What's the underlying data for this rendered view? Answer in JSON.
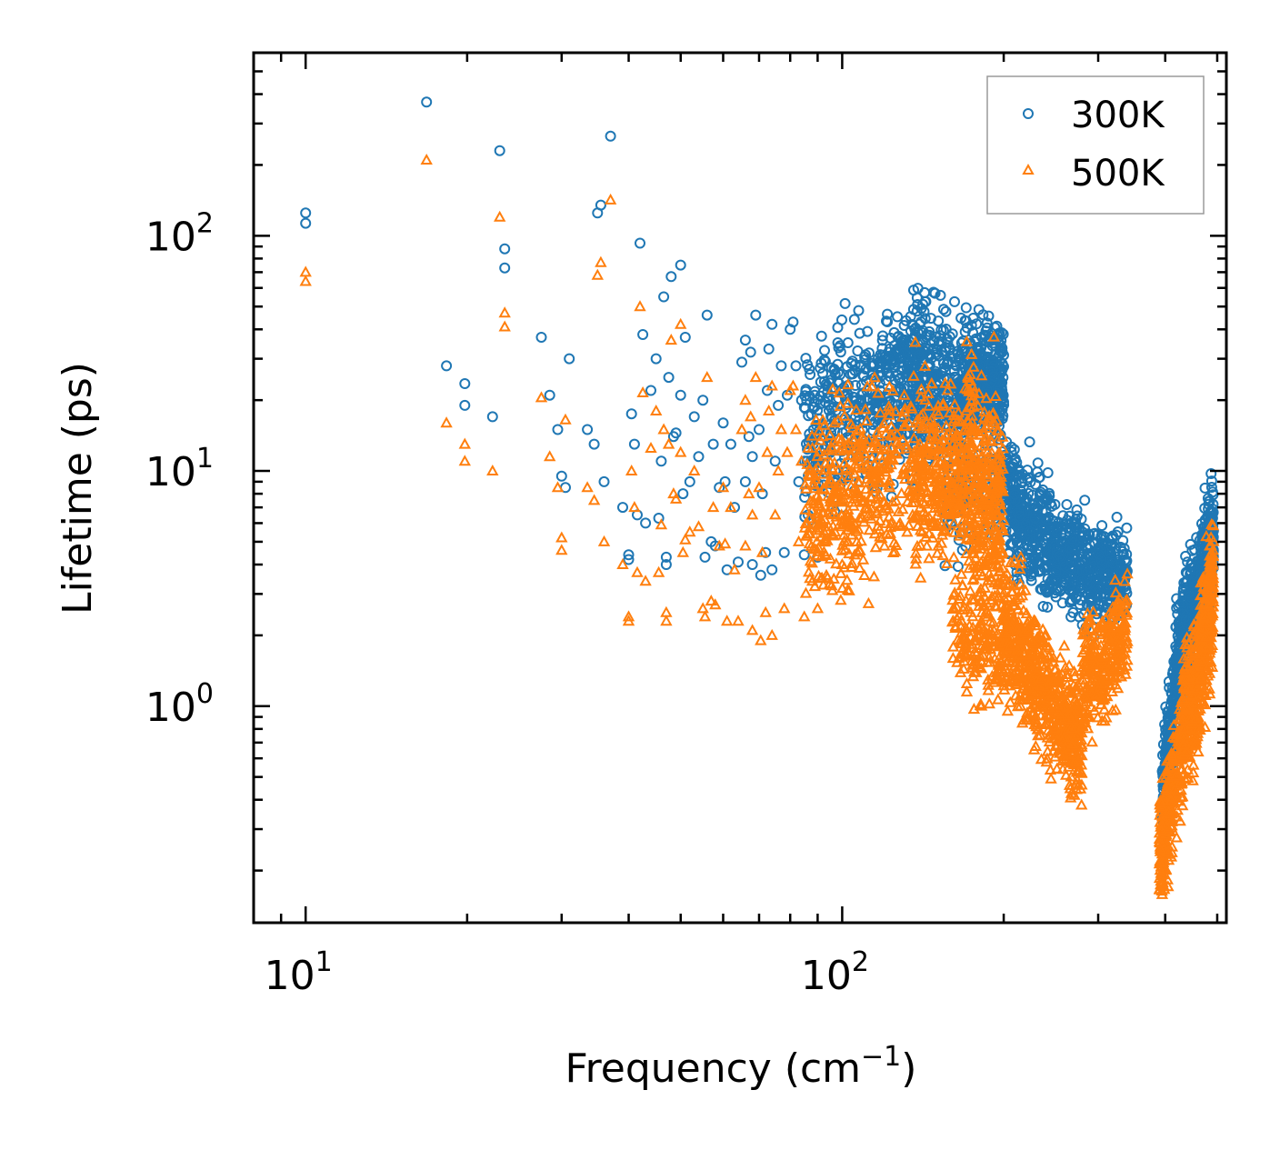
{
  "chart_data": {
    "type": "scatter",
    "title": "",
    "xlabel": "Frequency (cm",
    "xlabel_sup": "−1",
    "xlabel_suffix": ")",
    "ylabel": "Lifetime (ps)",
    "xscale": "log",
    "yscale": "log",
    "xlim": [
      8,
      520
    ],
    "ylim": [
      0.12,
      600
    ],
    "legend_position": "top-right",
    "x_ticks": [
      {
        "value": 10,
        "base": "10",
        "exp": "1"
      },
      {
        "value": 100,
        "base": "10",
        "exp": "2"
      }
    ],
    "y_ticks": [
      {
        "value": 1,
        "base": "10",
        "exp": "0"
      },
      {
        "value": 10,
        "base": "10",
        "exp": "1"
      },
      {
        "value": 100,
        "base": "10",
        "exp": "2"
      }
    ],
    "series": [
      {
        "name": "300K",
        "color": "#1f77b4",
        "marker": "circle",
        "points": [
          [
            10,
            125
          ],
          [
            10,
            113
          ],
          [
            16.8,
            370
          ],
          [
            18.3,
            28
          ],
          [
            19.8,
            23.5
          ],
          [
            19.8,
            19
          ],
          [
            22.3,
            17
          ],
          [
            23,
            230
          ],
          [
            23.5,
            88
          ],
          [
            23.5,
            73
          ],
          [
            27.5,
            37
          ],
          [
            28.5,
            21
          ],
          [
            29.5,
            15
          ],
          [
            30,
            9.5
          ],
          [
            30.5,
            8.5
          ],
          [
            31,
            30
          ],
          [
            33.5,
            15
          ],
          [
            34.5,
            13
          ],
          [
            35,
            125
          ],
          [
            35.5,
            135
          ],
          [
            36,
            9
          ],
          [
            37,
            265
          ],
          [
            39,
            7
          ],
          [
            40,
            4.4
          ],
          [
            40,
            4.2
          ],
          [
            40.5,
            17.5
          ],
          [
            41,
            13
          ],
          [
            41.5,
            6.5
          ],
          [
            42,
            93
          ],
          [
            42.5,
            38
          ],
          [
            43,
            6
          ],
          [
            44,
            22
          ],
          [
            45,
            30
          ],
          [
            45.5,
            6.3
          ],
          [
            46,
            11
          ],
          [
            46.5,
            55
          ],
          [
            47,
            4.3
          ],
          [
            47,
            4.0
          ],
          [
            47.5,
            25
          ],
          [
            48,
            67
          ],
          [
            48.5,
            14
          ],
          [
            49,
            14.5
          ],
          [
            50,
            75
          ],
          [
            50,
            21
          ],
          [
            50.5,
            8
          ],
          [
            51,
            37
          ],
          [
            52,
            9
          ],
          [
            53,
            17
          ],
          [
            54,
            11.5
          ],
          [
            55,
            20
          ],
          [
            55.5,
            4.3
          ],
          [
            56,
            46
          ],
          [
            57,
            5
          ],
          [
            57.5,
            13
          ],
          [
            58,
            4.8
          ],
          [
            59,
            8.5
          ],
          [
            60,
            16
          ],
          [
            60.5,
            9
          ],
          [
            61,
            3.8
          ],
          [
            62,
            13
          ],
          [
            63,
            7
          ],
          [
            64,
            4.1
          ],
          [
            65,
            29
          ],
          [
            66,
            36
          ],
          [
            66,
            9
          ],
          [
            67,
            14
          ],
          [
            67.5,
            32
          ],
          [
            68,
            4
          ],
          [
            68,
            11.5
          ],
          [
            69,
            46
          ],
          [
            70,
            15
          ],
          [
            70.5,
            3.6
          ],
          [
            71,
            8
          ],
          [
            72,
            4.5
          ],
          [
            72.5,
            22
          ],
          [
            73,
            33
          ],
          [
            74,
            42
          ],
          [
            74,
            3.8
          ],
          [
            75,
            11
          ],
          [
            76,
            19
          ],
          [
            77,
            28
          ],
          [
            78,
            4.5
          ],
          [
            79,
            21
          ],
          [
            80,
            40
          ],
          [
            81,
            43
          ],
          [
            82,
            28
          ],
          [
            83,
            9
          ],
          [
            84,
            20
          ],
          [
            85,
            4.4
          ],
          [
            86,
            11
          ],
          [
            88,
            6
          ],
          [
            90,
            4.3
          ],
          [
            92,
            26
          ],
          [
            95,
            13
          ],
          [
            97,
            10
          ],
          [
            100,
            7
          ]
        ],
        "clusters": [
          {
            "xmin": 85,
            "xmax": 140,
            "ymid_start": 15,
            "ymid_end": 24,
            "spread": 0.5,
            "count": 420
          },
          {
            "xmin": 120,
            "xmax": 135,
            "ymid_start": 28,
            "ymid_end": 30,
            "spread": 0.25,
            "count": 60
          },
          {
            "xmin": 135,
            "xmax": 170,
            "ymid_start": 24,
            "ymid_end": 22,
            "spread": 0.45,
            "count": 320
          },
          {
            "xmin": 170,
            "xmax": 200,
            "ymid_start": 26,
            "ymid_end": 25,
            "spread": 0.35,
            "count": 320
          },
          {
            "xmin": 155,
            "xmax": 200,
            "ymid_start": 7,
            "ymid_end": 9,
            "spread": 0.3,
            "count": 120
          },
          {
            "xmin": 200,
            "xmax": 250,
            "ymid_start": 8,
            "ymid_end": 4.5,
            "spread": 0.35,
            "count": 360
          },
          {
            "xmin": 250,
            "xmax": 300,
            "ymid_start": 4.5,
            "ymid_end": 3.5,
            "spread": 0.3,
            "count": 280
          },
          {
            "xmin": 300,
            "xmax": 340,
            "ymid_start": 3.8,
            "ymid_end": 3.6,
            "spread": 0.25,
            "count": 200
          },
          {
            "xmin": 395,
            "xmax": 430,
            "ymid_start": 0.4,
            "ymid_end": 2.0,
            "spread": 0.35,
            "count": 260
          },
          {
            "xmin": 430,
            "xmax": 465,
            "ymid_start": 2.0,
            "ymid_end": 3.0,
            "spread": 0.35,
            "count": 240
          },
          {
            "xmin": 465,
            "xmax": 492,
            "ymid_start": 3.5,
            "ymid_end": 5.5,
            "spread": 0.3,
            "count": 240
          }
        ]
      },
      {
        "name": "500K",
        "color": "#ff7f0e",
        "marker": "triangle",
        "points": [
          [
            10,
            70
          ],
          [
            10,
            64
          ],
          [
            16.8,
            210
          ],
          [
            18.3,
            16
          ],
          [
            19.8,
            13
          ],
          [
            19.8,
            11
          ],
          [
            22.3,
            10
          ],
          [
            23,
            120
          ],
          [
            23.5,
            47
          ],
          [
            23.5,
            41
          ],
          [
            27.5,
            20.5
          ],
          [
            28.5,
            11.5
          ],
          [
            29.5,
            8.5
          ],
          [
            30,
            5.2
          ],
          [
            30,
            4.6
          ],
          [
            30.5,
            16.5
          ],
          [
            33.5,
            8.5
          ],
          [
            34.5,
            7.5
          ],
          [
            35,
            68
          ],
          [
            35.5,
            77
          ],
          [
            36,
            5
          ],
          [
            37,
            142
          ],
          [
            39,
            4
          ],
          [
            40,
            2.4
          ],
          [
            40,
            2.3
          ],
          [
            40.5,
            10
          ],
          [
            41,
            7
          ],
          [
            41.5,
            3.7
          ],
          [
            42,
            50
          ],
          [
            42.5,
            21.5
          ],
          [
            43,
            3.4
          ],
          [
            44,
            12.5
          ],
          [
            45,
            18
          ],
          [
            45.5,
            3.7
          ],
          [
            46,
            5.9
          ],
          [
            46.5,
            15
          ],
          [
            47,
            2.5
          ],
          [
            47,
            2.3
          ],
          [
            47.5,
            13
          ],
          [
            48,
            36
          ],
          [
            48.5,
            8
          ],
          [
            49,
            7.6
          ],
          [
            50,
            42
          ],
          [
            50,
            12
          ],
          [
            50.5,
            4.5
          ],
          [
            51,
            5.1
          ],
          [
            52,
            5.5
          ],
          [
            53,
            10
          ],
          [
            54,
            5.8
          ],
          [
            55,
            2.6
          ],
          [
            55.5,
            2.4
          ],
          [
            56,
            25
          ],
          [
            57,
            2.8
          ],
          [
            57.5,
            7
          ],
          [
            58,
            2.7
          ],
          [
            59,
            4.8
          ],
          [
            60,
            8.5
          ],
          [
            60.5,
            4.9
          ],
          [
            61,
            2.3
          ],
          [
            62,
            7
          ],
          [
            63,
            3.8
          ],
          [
            64,
            2.3
          ],
          [
            65,
            15
          ],
          [
            66,
            20
          ],
          [
            66,
            4.8
          ],
          [
            67,
            8
          ],
          [
            67.5,
            17
          ],
          [
            68,
            2.1
          ],
          [
            68,
            6.5
          ],
          [
            69,
            25
          ],
          [
            70,
            8.5
          ],
          [
            70.5,
            1.9
          ],
          [
            71,
            4.5
          ],
          [
            72,
            2.5
          ],
          [
            72.5,
            12
          ],
          [
            73,
            18
          ],
          [
            74,
            23
          ],
          [
            74,
            2
          ],
          [
            75,
            6.5
          ],
          [
            76,
            10
          ],
          [
            77,
            15
          ],
          [
            78,
            2.6
          ],
          [
            79,
            12
          ],
          [
            80,
            22
          ],
          [
            81,
            23
          ],
          [
            82,
            15
          ],
          [
            83,
            5
          ],
          [
            84,
            11
          ],
          [
            85,
            2.4
          ],
          [
            86,
            6
          ],
          [
            88,
            3.4
          ],
          [
            90,
            2.6
          ],
          [
            92,
            14
          ],
          [
            95,
            7
          ],
          [
            97,
            5.5
          ],
          [
            100,
            4
          ]
        ],
        "clusters": [
          {
            "xmin": 85,
            "xmax": 135,
            "ymid_start": 6.5,
            "ymid_end": 11,
            "spread": 0.55,
            "count": 420
          },
          {
            "xmin": 135,
            "xmax": 170,
            "ymid_start": 11,
            "ymid_end": 9,
            "spread": 0.5,
            "count": 320
          },
          {
            "xmin": 170,
            "xmax": 200,
            "ymid_start": 9,
            "ymid_end": 6,
            "spread": 0.7,
            "count": 360
          },
          {
            "xmin": 160,
            "xmax": 210,
            "ymid_start": 2.2,
            "ymid_end": 1.6,
            "spread": 0.35,
            "count": 200
          },
          {
            "xmin": 200,
            "xmax": 240,
            "ymid_start": 2.2,
            "ymid_end": 1.2,
            "spread": 0.4,
            "count": 320
          },
          {
            "xmin": 240,
            "xmax": 280,
            "ymid_start": 1.1,
            "ymid_end": 0.65,
            "spread": 0.35,
            "count": 300
          },
          {
            "xmin": 280,
            "xmax": 340,
            "ymid_start": 1.3,
            "ymid_end": 2.0,
            "spread": 0.35,
            "count": 300
          },
          {
            "xmin": 390,
            "xmax": 430,
            "ymid_start": 0.22,
            "ymid_end": 0.7,
            "spread": 0.35,
            "count": 260
          },
          {
            "xmin": 430,
            "xmax": 465,
            "ymid_start": 0.8,
            "ymid_end": 1.4,
            "spread": 0.4,
            "count": 240
          },
          {
            "xmin": 465,
            "xmax": 492,
            "ymid_start": 1.6,
            "ymid_end": 3.2,
            "spread": 0.4,
            "count": 240
          }
        ]
      }
    ]
  }
}
